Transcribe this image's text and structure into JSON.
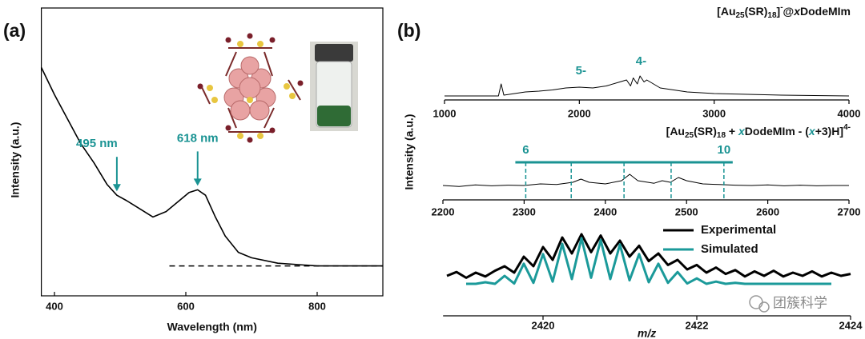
{
  "chart_data": [
    {
      "type": "line",
      "panel_label": "(a)",
      "xlabel": "Wavelength (nm)",
      "ylabel": "Intensity (a.u.)",
      "color": "#000000",
      "x": [
        380,
        400,
        420,
        440,
        460,
        480,
        495,
        510,
        530,
        550,
        570,
        590,
        605,
        618,
        630,
        645,
        660,
        680,
        700,
        740,
        800,
        900
      ],
      "values": [
        0.84,
        0.74,
        0.65,
        0.56,
        0.49,
        0.41,
        0.37,
        0.35,
        0.32,
        0.29,
        0.31,
        0.35,
        0.38,
        0.39,
        0.37,
        0.29,
        0.22,
        0.16,
        0.14,
        0.12,
        0.11,
        0.11
      ],
      "xlim": [
        380,
        900
      ],
      "ylim": [
        0,
        1
      ],
      "xticks": [
        400,
        600,
        800
      ],
      "annotations": [
        {
          "text": "495 nm",
          "x": 495
        },
        {
          "text": "618 nm",
          "x": 618
        }
      ],
      "annotation_color": "#1a9393",
      "baseline": {
        "x": [
          575,
          900
        ],
        "y": 0.11
      }
    },
    {
      "type": "line",
      "panel_label": "(b)",
      "color": "#000000",
      "title_parts": [
        {
          "text": "[Au"
        },
        {
          "text": "25",
          "style": "sub"
        },
        {
          "text": "(SR)"
        },
        {
          "text": "18",
          "style": "sub"
        },
        {
          "text": "]"
        },
        {
          "text": "-",
          "style": "sup"
        },
        {
          "text": "@"
        },
        {
          "text": "x",
          "style": "italic"
        },
        {
          "text": "DodeMIm"
        }
      ],
      "x": [
        1000,
        1400,
        1420,
        1440,
        1500,
        1600,
        1700,
        1800,
        1900,
        2000,
        2100,
        2200,
        2300,
        2350,
        2380,
        2400,
        2430,
        2450,
        2480,
        2500,
        2600,
        2800,
        3000,
        3500,
        4000
      ],
      "values": [
        0.1,
        0.1,
        0.4,
        0.12,
        0.15,
        0.2,
        0.22,
        0.25,
        0.3,
        0.32,
        0.3,
        0.35,
        0.45,
        0.5,
        0.35,
        0.55,
        0.4,
        0.6,
        0.45,
        0.5,
        0.3,
        0.2,
        0.16,
        0.12,
        0.1
      ],
      "xlim": [
        1000,
        4000
      ],
      "ylim": [
        0,
        1
      ],
      "xticks": [
        1000,
        2000,
        3000,
        4000
      ],
      "annotations": [
        {
          "text": "5-",
          "x": 2012
        },
        {
          "text": "4-",
          "x": 2458
        }
      ],
      "annotation_color": "#1a9393"
    },
    {
      "type": "line",
      "ylabel": "Intensity (a.u.)",
      "color": "#000000",
      "title_parts": [
        {
          "text": "[Au"
        },
        {
          "text": "25",
          "style": "sub"
        },
        {
          "text": "(SR)"
        },
        {
          "text": "18",
          "style": "sub"
        },
        {
          "text": " + "
        },
        {
          "text": "x",
          "style": "italic",
          "color": "#1a9393"
        },
        {
          "text": "DodeMIm - ("
        },
        {
          "text": "x",
          "style": "italic",
          "color": "#1a9393"
        },
        {
          "text": "+3)H]"
        },
        {
          "text": "4-",
          "style": "sup"
        }
      ],
      "x": [
        2200,
        2220,
        2240,
        2260,
        2280,
        2300,
        2320,
        2340,
        2360,
        2370,
        2380,
        2400,
        2420,
        2430,
        2440,
        2460,
        2470,
        2480,
        2490,
        2500,
        2520,
        2540,
        2560,
        2580,
        2600,
        2620,
        2640,
        2660,
        2680,
        2700
      ],
      "values": [
        0.45,
        0.42,
        0.47,
        0.44,
        0.46,
        0.45,
        0.5,
        0.48,
        0.55,
        0.65,
        0.55,
        0.5,
        0.6,
        0.8,
        0.6,
        0.52,
        0.6,
        0.55,
        0.7,
        0.6,
        0.5,
        0.48,
        0.46,
        0.45,
        0.47,
        0.44,
        0.46,
        0.44,
        0.45,
        0.45
      ],
      "xlim": [
        2200,
        2700
      ],
      "ylim": [
        0,
        1
      ],
      "xticks": [
        2200,
        2300,
        2400,
        2500,
        2600,
        2700
      ],
      "markers": [
        {
          "x": 2302,
          "label": "6"
        },
        {
          "x": 2358
        },
        {
          "x": 2423
        },
        {
          "x": 2481
        },
        {
          "x": 2546,
          "label": "10"
        }
      ],
      "marker_color": "#1a9393"
    },
    {
      "type": "line",
      "xlabel": "m/z",
      "series": [
        {
          "name": "Experimental",
          "color": "#000000",
          "x": [
            2418.75,
            2418.875,
            2419,
            2419.125,
            2419.25,
            2419.375,
            2419.5,
            2419.625,
            2419.75,
            2419.875,
            2420,
            2420.125,
            2420.25,
            2420.375,
            2420.5,
            2420.625,
            2420.75,
            2420.875,
            2421,
            2421.125,
            2421.25,
            2421.375,
            2421.5,
            2421.625,
            2421.75,
            2421.875,
            2422,
            2422.125,
            2422.25,
            2422.375,
            2422.5,
            2422.625,
            2422.75,
            2422.875,
            2423,
            2423.125,
            2423.25,
            2423.375,
            2423.5,
            2423.625,
            2423.75,
            2423.875,
            2424
          ],
          "values": [
            0.25,
            0.31,
            0.22,
            0.3,
            0.24,
            0.33,
            0.4,
            0.3,
            0.55,
            0.4,
            0.7,
            0.5,
            0.85,
            0.6,
            0.9,
            0.62,
            0.88,
            0.6,
            0.8,
            0.55,
            0.72,
            0.48,
            0.6,
            0.42,
            0.5,
            0.35,
            0.42,
            0.3,
            0.38,
            0.28,
            0.34,
            0.24,
            0.32,
            0.25,
            0.33,
            0.24,
            0.3,
            0.25,
            0.32,
            0.24,
            0.3,
            0.25,
            0.28
          ]
        },
        {
          "name": "Simulated",
          "color": "#1b9a9a",
          "x": [
            2419,
            2419.125,
            2419.25,
            2419.375,
            2419.5,
            2419.625,
            2419.75,
            2419.875,
            2420,
            2420.125,
            2420.25,
            2420.375,
            2420.5,
            2420.625,
            2420.75,
            2420.875,
            2421,
            2421.125,
            2421.25,
            2421.375,
            2421.5,
            2421.625,
            2421.75,
            2421.875,
            2422,
            2422.125,
            2422.25,
            2422.375,
            2422.5,
            2422.625,
            2422.75,
            2422.875,
            2423,
            2423.125,
            2423.25,
            2423.375,
            2423.5,
            2423.625,
            2423.75
          ],
          "values": [
            0.125,
            0.125,
            0.15,
            0.125,
            0.25,
            0.13,
            0.44,
            0.14,
            0.59,
            0.16,
            0.75,
            0.2,
            0.84,
            0.22,
            0.81,
            0.2,
            0.74,
            0.18,
            0.59,
            0.15,
            0.44,
            0.14,
            0.31,
            0.13,
            0.21,
            0.125,
            0.16,
            0.125,
            0.14,
            0.125,
            0.125,
            0.125,
            0.125,
            0.125,
            0.125,
            0.125,
            0.125,
            0.125,
            0.125
          ]
        }
      ],
      "xlim": [
        2418.7,
        2424
      ],
      "ylim": [
        0,
        1
      ],
      "xticks": [
        2420,
        2422,
        2424
      ]
    }
  ],
  "watermark": "团簇科学"
}
